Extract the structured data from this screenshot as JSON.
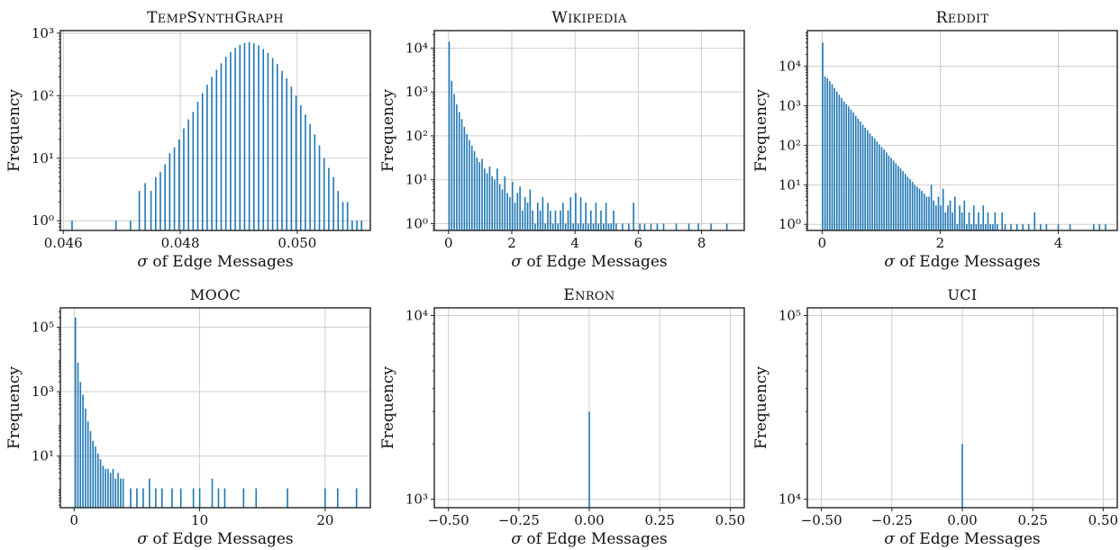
{
  "figure": {
    "bar_color": "#1f77b4"
  },
  "chart_data": [
    {
      "type": "bar",
      "title": "TEMPSYNTHGRAPH",
      "xlabel": "σ of Edge Messages",
      "ylabel": "Frequency",
      "yscale": "log",
      "xlim": [
        0.04595,
        0.05125
      ],
      "ylim": [
        0.7,
        1100
      ],
      "xticks": [
        0.046,
        0.048,
        0.05
      ],
      "xticklabels": [
        "0.046",
        "0.048",
        "0.050"
      ],
      "yticks": [
        1,
        10,
        100,
        1000
      ],
      "yticklabels": [
        "10⁰",
        "10¹",
        "10²",
        "10³"
      ],
      "grid": true,
      "bar_width": 2e-05,
      "x": [
        0.04615,
        0.0469,
        0.04715,
        0.0473,
        0.0474,
        0.0475,
        0.04758,
        0.04766,
        0.04774,
        0.04782,
        0.0479,
        0.04798,
        0.04806,
        0.04814,
        0.04822,
        0.0483,
        0.04838,
        0.04846,
        0.04854,
        0.04862,
        0.0487,
        0.04878,
        0.04886,
        0.04894,
        0.04902,
        0.0491,
        0.04918,
        0.04926,
        0.04934,
        0.04942,
        0.0495,
        0.04958,
        0.04966,
        0.04974,
        0.04982,
        0.0499,
        0.04998,
        0.05006,
        0.05014,
        0.05022,
        0.0503,
        0.05038,
        0.05046,
        0.05054,
        0.05062,
        0.0507,
        0.05078,
        0.05086,
        0.05094,
        0.05102,
        0.0511
      ],
      "values": [
        1,
        1,
        1,
        3,
        4,
        3,
        5,
        6,
        8,
        12,
        15,
        20,
        30,
        42,
        55,
        80,
        110,
        150,
        200,
        260,
        330,
        420,
        500,
        580,
        650,
        700,
        720,
        690,
        640,
        560,
        480,
        400,
        320,
        250,
        190,
        140,
        100,
        70,
        50,
        35,
        24,
        16,
        10,
        7,
        5,
        3,
        2,
        2,
        1,
        1,
        1
      ]
    },
    {
      "type": "bar",
      "title": "WIKIPEDIA",
      "xlabel": "σ of Edge Messages",
      "ylabel": "Frequency",
      "yscale": "log",
      "xlim": [
        -0.45,
        9.35
      ],
      "ylim": [
        0.7,
        25000
      ],
      "xticks": [
        0,
        2,
        4,
        6,
        8
      ],
      "xticklabels": [
        "0",
        "2",
        "4",
        "6",
        "8"
      ],
      "yticks": [
        1,
        10,
        100,
        1000,
        10000
      ],
      "yticklabels": [
        "10⁰",
        "10¹",
        "10²",
        "10³",
        "10⁴"
      ],
      "grid": true,
      "bar_width": 0.03,
      "x": [
        0.02,
        0.1,
        0.18,
        0.26,
        0.34,
        0.42,
        0.5,
        0.58,
        0.66,
        0.74,
        0.82,
        0.9,
        0.98,
        1.06,
        1.14,
        1.22,
        1.3,
        1.38,
        1.46,
        1.54,
        1.62,
        1.7,
        1.78,
        1.86,
        1.94,
        2.02,
        2.1,
        2.18,
        2.26,
        2.34,
        2.42,
        2.5,
        2.58,
        2.66,
        2.74,
        2.82,
        2.9,
        2.98,
        3.06,
        3.14,
        3.22,
        3.3,
        3.38,
        3.46,
        3.54,
        3.62,
        3.7,
        3.78,
        3.86,
        3.94,
        4.02,
        4.1,
        4.18,
        4.26,
        4.34,
        4.42,
        4.5,
        4.58,
        4.66,
        4.74,
        4.82,
        4.9,
        4.98,
        5.06,
        5.14,
        5.22,
        5.3,
        5.5,
        5.7,
        5.85,
        6.05,
        6.2,
        6.4,
        6.6,
        6.8,
        7.2,
        7.6,
        7.9,
        8.3,
        8.8
      ],
      "values": [
        14000,
        1800,
        900,
        520,
        350,
        240,
        160,
        110,
        80,
        60,
        45,
        32,
        25,
        30,
        18,
        14,
        20,
        12,
        10,
        18,
        8,
        6,
        12,
        5,
        4,
        9,
        3,
        5,
        7,
        2,
        4,
        3,
        6,
        2,
        1,
        3,
        2,
        4,
        1,
        3,
        2,
        1,
        2,
        1,
        2,
        3,
        1,
        2,
        4,
        1,
        5,
        1,
        4,
        1,
        3,
        1,
        2,
        1,
        3,
        1,
        2,
        1,
        3,
        1,
        1,
        2,
        1,
        1,
        1,
        3,
        1,
        1,
        1,
        1,
        1,
        1,
        1,
        1,
        1,
        1
      ]
    },
    {
      "type": "bar",
      "title": "REDDIT",
      "xlabel": "σ of Edge Messages",
      "ylabel": "Frequency",
      "yscale": "log",
      "xlim": [
        -0.25,
        5.0
      ],
      "ylim": [
        0.7,
        80000
      ],
      "xticks": [
        0,
        2,
        4
      ],
      "xticklabels": [
        "0",
        "2",
        "4"
      ],
      "yticks": [
        1,
        10,
        100,
        1000,
        10000
      ],
      "yticklabels": [
        "10⁰",
        "10¹",
        "10²",
        "10³",
        "10⁴"
      ],
      "grid": true,
      "bar_width": 0.015,
      "x": [
        0.01,
        0.05,
        0.09,
        0.13,
        0.17,
        0.21,
        0.25,
        0.29,
        0.33,
        0.37,
        0.41,
        0.45,
        0.49,
        0.53,
        0.57,
        0.61,
        0.65,
        0.69,
        0.73,
        0.77,
        0.81,
        0.85,
        0.89,
        0.93,
        0.97,
        1.01,
        1.05,
        1.09,
        1.13,
        1.17,
        1.21,
        1.25,
        1.29,
        1.33,
        1.37,
        1.41,
        1.45,
        1.49,
        1.53,
        1.57,
        1.61,
        1.65,
        1.69,
        1.73,
        1.77,
        1.81,
        1.85,
        1.89,
        1.93,
        1.97,
        2.01,
        2.05,
        2.09,
        2.13,
        2.17,
        2.21,
        2.25,
        2.29,
        2.33,
        2.37,
        2.41,
        2.45,
        2.49,
        2.53,
        2.57,
        2.61,
        2.65,
        2.69,
        2.73,
        2.77,
        2.81,
        2.85,
        2.89,
        2.93,
        2.97,
        3.05,
        3.1,
        3.2,
        3.3,
        3.4,
        3.5,
        3.6,
        3.7,
        3.8,
        4.0,
        4.2,
        4.6,
        4.7,
        4.8
      ],
      "values": [
        40000,
        5500,
        5000,
        4200,
        3500,
        2800,
        2300,
        1900,
        1600,
        1300,
        1100,
        950,
        800,
        680,
        560,
        470,
        400,
        330,
        280,
        240,
        200,
        170,
        150,
        125,
        105,
        90,
        78,
        66,
        55,
        48,
        41,
        35,
        30,
        26,
        22,
        19,
        16,
        14,
        12,
        10,
        9,
        8,
        7,
        6,
        5,
        5,
        10,
        4,
        3,
        5,
        3,
        8,
        2,
        3,
        4,
        2,
        5,
        1,
        3,
        2,
        4,
        1,
        2,
        1,
        3,
        1,
        2,
        1,
        3,
        1,
        2,
        1,
        1,
        2,
        1,
        2,
        1,
        1,
        1,
        1,
        1,
        2,
        1,
        1,
        1,
        1,
        1,
        1,
        1
      ]
    },
    {
      "type": "bar",
      "title": "MOOC",
      "xlabel": "σ of Edge Messages",
      "ylabel": "Frequency",
      "yscale": "log",
      "xlim": [
        -1.1,
        23.6
      ],
      "ylim": [
        0.25,
        400000
      ],
      "xticks": [
        0,
        10,
        20
      ],
      "xticklabels": [
        "0",
        "10",
        "20"
      ],
      "yticks": [
        10,
        1000,
        100000
      ],
      "yticklabels": [
        "10¹",
        "10³",
        "10⁵"
      ],
      "grid": true,
      "bar_width": 0.1,
      "x": [
        0.1,
        0.3,
        0.5,
        0.7,
        0.9,
        1.1,
        1.3,
        1.5,
        1.7,
        1.9,
        2.1,
        2.3,
        2.5,
        2.7,
        2.9,
        3.1,
        3.3,
        3.5,
        3.7,
        3.9,
        4.5,
        5.0,
        5.5,
        6.0,
        6.5,
        7.0,
        7.8,
        8.5,
        9.5,
        10.0,
        11.0,
        11.5,
        12.0,
        13.5,
        14.5,
        17.0,
        20.0,
        21.0,
        22.5
      ],
      "values": [
        200000,
        8000,
        2000,
        800,
        300,
        120,
        60,
        30,
        20,
        12,
        8,
        5,
        4,
        4,
        3,
        4,
        2,
        3,
        2,
        2,
        1,
        1,
        1,
        2,
        1,
        1,
        1,
        1,
        1,
        1,
        2,
        1,
        1,
        1,
        1,
        1,
        1,
        1,
        1
      ]
    },
    {
      "type": "bar",
      "title": "ENRON",
      "xlabel": "σ of Edge Messages",
      "ylabel": "Frequency",
      "yscale": "log",
      "xlim": [
        -0.55,
        0.55
      ],
      "ylim": [
        900,
        11000
      ],
      "xticks": [
        -0.5,
        -0.25,
        0,
        0.25,
        0.5
      ],
      "xticklabels": [
        "−0.50",
        "−0.25",
        "0.00",
        "0.25",
        "0.50"
      ],
      "yticks": [
        1000,
        10000
      ],
      "yticklabels": [
        "10³",
        "10⁴"
      ],
      "grid": true,
      "bar_width": 0.002,
      "x": [
        0.0
      ],
      "values": [
        3000
      ]
    },
    {
      "type": "bar",
      "title": "UCI",
      "xlabel": "σ of Edge Messages",
      "ylabel": "Frequency",
      "yscale": "log",
      "xlim": [
        -0.55,
        0.55
      ],
      "ylim": [
        9000,
        110000
      ],
      "xticks": [
        -0.5,
        -0.25,
        0,
        0.25,
        0.5
      ],
      "xticklabels": [
        "−0.50",
        "−0.25",
        "0.00",
        "0.25",
        "0.50"
      ],
      "yticks": [
        10000,
        100000
      ],
      "yticklabels": [
        "10⁴",
        "10⁵"
      ],
      "grid": true,
      "bar_width": 0.002,
      "x": [
        0.0
      ],
      "values": [
        20000
      ]
    }
  ]
}
